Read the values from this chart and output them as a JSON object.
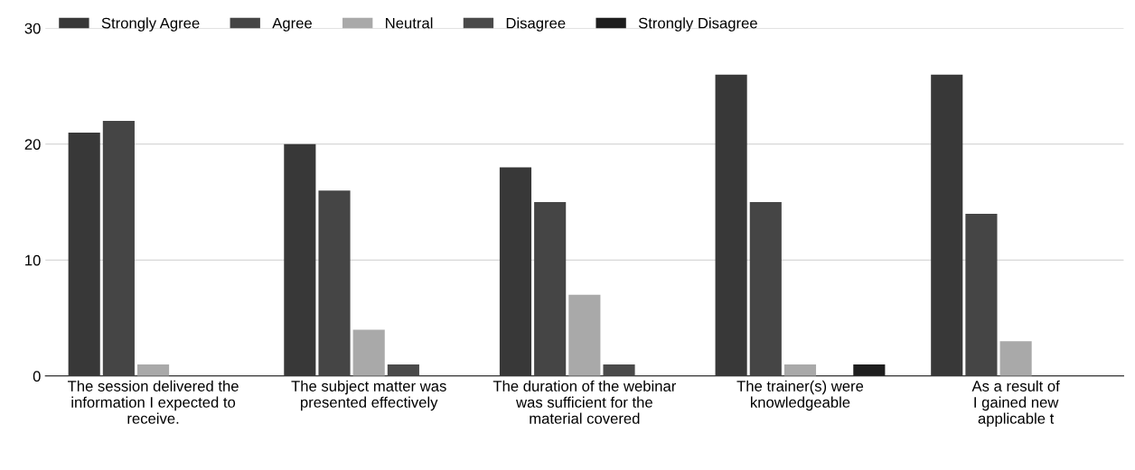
{
  "chart_data": {
    "type": "bar",
    "categories": [
      "The session delivered the\ninformation I expected to\nreceive.",
      "The subject matter was\npresented effectively",
      "The duration of the webinar\nwas sufficient for the\nmaterial covered",
      "The trainer(s) were\nknowledgeable",
      "As a result of\nI gained new\napplicable t"
    ],
    "series": [
      {
        "name": "Strongly Agree",
        "color": "#383838",
        "values": [
          21,
          20,
          18,
          26,
          26
        ]
      },
      {
        "name": "Agree",
        "color": "#454545",
        "values": [
          22,
          16,
          15,
          15,
          14
        ]
      },
      {
        "name": "Neutral",
        "color": "#a9a9a9",
        "values": [
          1,
          4,
          7,
          1,
          3
        ]
      },
      {
        "name": "Disagree",
        "color": "#4a4a4a",
        "values": [
          0,
          1,
          1,
          0,
          null
        ]
      },
      {
        "name": "Strongly Disagree",
        "color": "#1e1e1e",
        "values": [
          0,
          0,
          0,
          1,
          null
        ]
      }
    ],
    "ylim": [
      0,
      30
    ],
    "yticks": [
      0,
      10,
      20,
      30
    ],
    "grid": "y",
    "legend": "top"
  }
}
